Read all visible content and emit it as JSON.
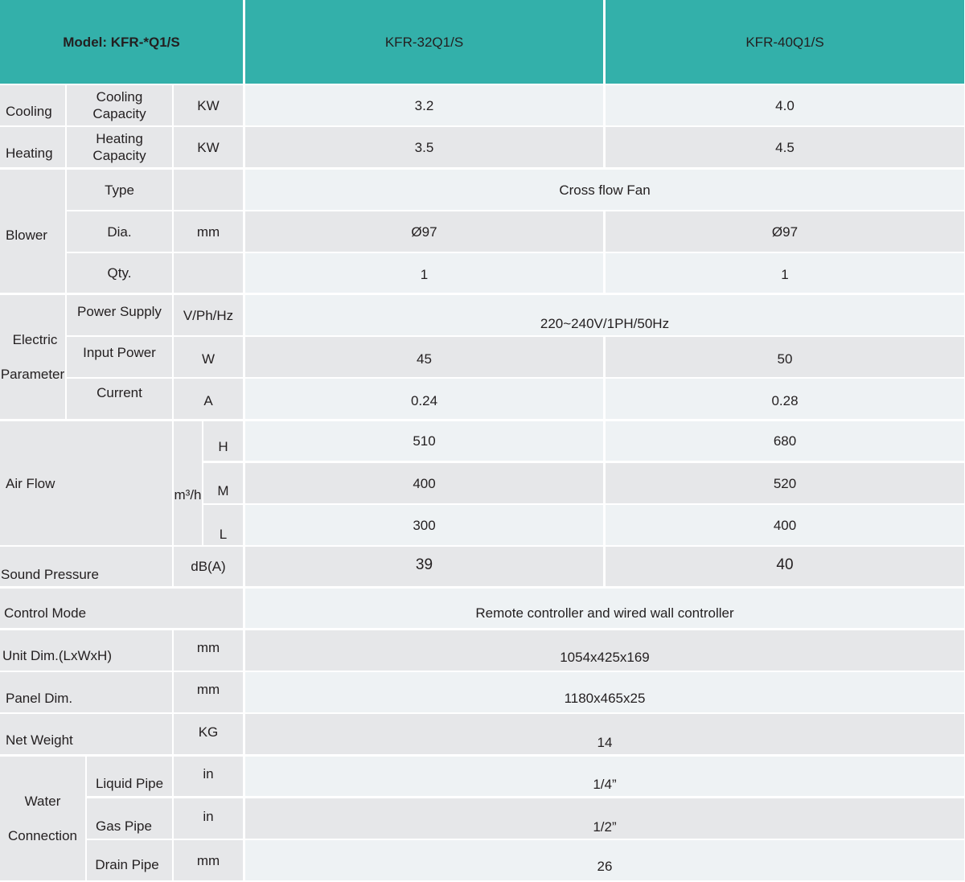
{
  "header": {
    "model_label": "Model: KFR-*Q1/S",
    "models": [
      "KFR-32Q1/S",
      "KFR-40Q1/S"
    ]
  },
  "colors": {
    "header": "#33b0aa",
    "label_cell": "#e6e7e9",
    "row_light": "#eef2f4",
    "row_grey": "#e6e7e9"
  },
  "cooling": {
    "group": "Cooling",
    "item": "Cooling Capacity",
    "unit": "KW",
    "values": [
      "3.2",
      "4.0"
    ]
  },
  "heating": {
    "group": "Heating",
    "item": "Heating Capacity",
    "unit": "KW",
    "values": [
      "3.5",
      "4.5"
    ]
  },
  "blower": {
    "group": "Blower",
    "type": {
      "item": "Type",
      "value": "Cross flow Fan"
    },
    "dia": {
      "item": "Dia.",
      "unit": "mm",
      "values": [
        "Ø97",
        "Ø97"
      ]
    },
    "qty": {
      "item": "Qty.",
      "values": [
        "1",
        "1"
      ]
    }
  },
  "electric": {
    "group_line1": "Electric",
    "group_line2": "Parameter",
    "power_supply": {
      "item": "Power Supply",
      "unit": "V/Ph/Hz",
      "value": "220~240V/1PH/50Hz"
    },
    "input_power": {
      "item": "Input Power",
      "unit": "W",
      "values": [
        "45",
        "50"
      ]
    },
    "current": {
      "item": "Current",
      "unit": "A",
      "values": [
        "0.24",
        "0.28"
      ]
    }
  },
  "air_flow": {
    "group": "Air Flow",
    "unit": "m³/h",
    "h": {
      "level": "H",
      "values": [
        "510",
        "680"
      ]
    },
    "m": {
      "level": "M",
      "values": [
        "400",
        "520"
      ]
    },
    "l": {
      "level": "L",
      "values": [
        "300",
        "400"
      ]
    }
  },
  "sound": {
    "item": "Sound Pressure",
    "unit": "dB(A)",
    "values": [
      "39",
      "40"
    ]
  },
  "control": {
    "item": "Control Mode",
    "value": "Remote controller and wired wall controller"
  },
  "unit_dim": {
    "item": "Unit Dim.(LxWxH)",
    "unit": "mm",
    "value": "1054x425x169"
  },
  "panel_dim": {
    "item": "Panel Dim.",
    "unit": "mm",
    "value": "1180x465x25"
  },
  "net_weight": {
    "item": "Net Weight",
    "unit": "KG",
    "value": "14"
  },
  "water": {
    "group_line1": "Water",
    "group_line2": "Connection",
    "liquid": {
      "item": "Liquid Pipe",
      "unit": "in",
      "value": "1/4”"
    },
    "gas": {
      "item": "Gas Pipe",
      "unit": "in",
      "value": "1/2”"
    },
    "drain": {
      "item": "Drain Pipe",
      "unit": "mm",
      "value": "26"
    }
  }
}
